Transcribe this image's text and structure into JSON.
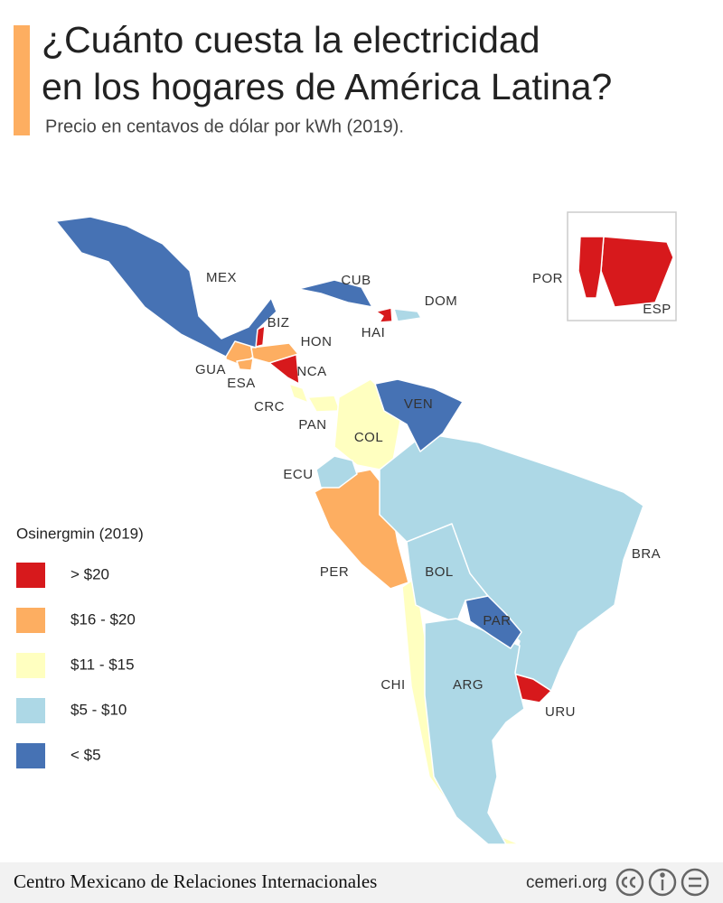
{
  "header": {
    "title": [
      "¿Cuánto cuesta la electricidad",
      "en los hogares de América Latina?"
    ],
    "subtitle": "Precio en centavos de dólar por kWh (2019)."
  },
  "legend": {
    "title": "Osinergmin (2019)",
    "items": [
      {
        "label": "> $20",
        "color": "#d7191c",
        "countries": [
          "BIZ",
          "HAI",
          "NCA",
          "URU",
          "ESP",
          "POR"
        ]
      },
      {
        "label": "$16 - $20",
        "color": "#fdae61",
        "countries": [
          "GUA",
          "ESA",
          "HON",
          "PER"
        ]
      },
      {
        "label": "$11 - $15",
        "color": "#ffffc0",
        "countries": [
          "CRC",
          "PAN",
          "COL",
          "CHI"
        ]
      },
      {
        "label": "$5 - $10",
        "color": "#add8e6",
        "countries": [
          "DOM",
          "ECU",
          "BRA",
          "BOL",
          "ARG"
        ]
      },
      {
        "label": "< $5",
        "color": "#4672b4",
        "countries": [
          "MEX",
          "CUB",
          "VEN",
          "PAR"
        ]
      }
    ]
  },
  "footer": {
    "organization": "Centro Mexicano de Relaciones Internacionales",
    "site": "cemeri.org"
  }
}
